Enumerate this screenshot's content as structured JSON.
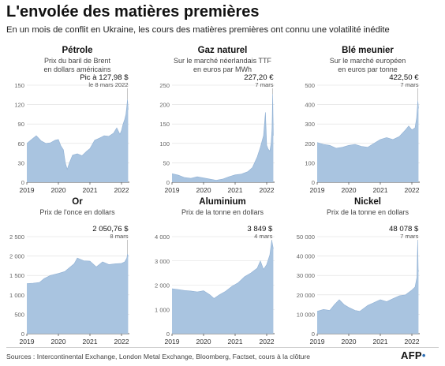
{
  "header": {
    "title": "L'envolée des matières premières",
    "subtitle": "En un mois de conflit en Ukraine, les cours des matières premières ont connu une volatilité inédite"
  },
  "footer": {
    "source": "Sources : Intercontinental Exchange, London Metal Exchange, Bloomberg, Factset, cours à la clôture",
    "logo_text": "AFP",
    "logo_dot": "•"
  },
  "style": {
    "area_color": "#a9c4e0",
    "text_color": "#222222",
    "grid_color": "#dddddd",
    "axis_color": "#555555"
  },
  "chart_data": [
    {
      "type": "area",
      "title": "Pétrole",
      "subtitle": [
        "Prix du baril de Brent",
        "en dollars américains"
      ],
      "annotation": {
        "value": "Pic à 127,98 $",
        "date": "le 8 mars 2022"
      },
      "yticks": [
        0,
        30,
        60,
        90,
        120,
        150
      ],
      "ylim": [
        0,
        150
      ],
      "xticks": [
        "2019",
        "2020",
        "2021",
        "2022"
      ],
      "xlim": [
        2019.0,
        2022.25
      ],
      "x": [
        2019.0,
        2019.15,
        2019.3,
        2019.45,
        2019.6,
        2019.75,
        2019.9,
        2020.0,
        2020.08,
        2020.16,
        2020.22,
        2020.28,
        2020.35,
        2020.45,
        2020.6,
        2020.75,
        2020.9,
        2021.0,
        2021.15,
        2021.3,
        2021.45,
        2021.6,
        2021.75,
        2021.85,
        2021.95,
        2022.0,
        2022.05,
        2022.1,
        2022.14,
        2022.17,
        2022.19,
        2022.21
      ],
      "values": [
        60,
        66,
        72,
        64,
        60,
        61,
        65,
        66,
        56,
        50,
        30,
        20,
        30,
        42,
        44,
        41,
        48,
        52,
        65,
        68,
        72,
        71,
        76,
        84,
        74,
        80,
        90,
        97,
        105,
        118,
        128,
        112
      ]
    },
    {
      "type": "area",
      "title": "Gaz naturel",
      "subtitle": [
        "Sur le marché néerlandais TTF",
        "en euros par MWh"
      ],
      "annotation": {
        "value": "227,20 €",
        "date": "7 mars"
      },
      "yticks": [
        0,
        50,
        100,
        150,
        200,
        250
      ],
      "ylim": [
        0,
        250
      ],
      "xticks": [
        "2019",
        "2020",
        "2021",
        "2022"
      ],
      "xlim": [
        2019.0,
        2022.25
      ],
      "x": [
        2019.0,
        2019.2,
        2019.4,
        2019.6,
        2019.8,
        2020.0,
        2020.2,
        2020.4,
        2020.6,
        2020.8,
        2021.0,
        2021.2,
        2021.4,
        2021.55,
        2021.7,
        2021.8,
        2021.9,
        2021.96,
        2022.0,
        2022.05,
        2022.1,
        2022.14,
        2022.17,
        2022.19,
        2022.21
      ],
      "values": [
        22,
        18,
        12,
        10,
        14,
        11,
        8,
        5,
        8,
        14,
        19,
        21,
        27,
        38,
        65,
        90,
        120,
        180,
        95,
        85,
        80,
        100,
        140,
        227,
        120
      ]
    },
    {
      "type": "area",
      "title": "Blé meunier",
      "subtitle": [
        "Sur le marché européen",
        "en euros par tonne"
      ],
      "annotation": {
        "value": "422,50 €",
        "date": "7 mars"
      },
      "yticks": [
        0,
        100,
        200,
        300,
        400,
        500
      ],
      "ylim": [
        0,
        500
      ],
      "xticks": [
        "2019",
        "2020",
        "2021",
        "2022"
      ],
      "xlim": [
        2019.0,
        2022.25
      ],
      "x": [
        2019.0,
        2019.2,
        2019.4,
        2019.6,
        2019.8,
        2020.0,
        2020.2,
        2020.4,
        2020.6,
        2020.8,
        2021.0,
        2021.2,
        2021.4,
        2021.6,
        2021.8,
        2021.9,
        2022.0,
        2022.1,
        2022.15,
        2022.19,
        2022.21
      ],
      "values": [
        205,
        195,
        190,
        175,
        180,
        190,
        195,
        185,
        180,
        200,
        220,
        230,
        220,
        235,
        270,
        290,
        270,
        280,
        330,
        420,
        380
      ]
    },
    {
      "type": "area",
      "title": "Or",
      "subtitle": [
        "Prix de l'once en dollars"
      ],
      "annotation": {
        "value": "2 050,76 $",
        "date": "8 mars"
      },
      "yticks": [
        0,
        500,
        1000,
        1500,
        2000,
        2500
      ],
      "ylim": [
        0,
        2500
      ],
      "xticks": [
        "2019",
        "2020",
        "2021",
        "2022"
      ],
      "xlim": [
        2019.0,
        2022.25
      ],
      "x": [
        2019.0,
        2019.2,
        2019.4,
        2019.55,
        2019.75,
        2020.0,
        2020.2,
        2020.35,
        2020.5,
        2020.6,
        2020.8,
        2021.0,
        2021.2,
        2021.4,
        2021.6,
        2021.8,
        2022.0,
        2022.1,
        2022.17,
        2022.19,
        2022.21
      ],
      "values": [
        1290,
        1300,
        1320,
        1420,
        1500,
        1550,
        1600,
        1700,
        1800,
        1950,
        1880,
        1870,
        1720,
        1850,
        1780,
        1800,
        1810,
        1850,
        1950,
        2050,
        1990
      ]
    },
    {
      "type": "area",
      "title": "Aluminium",
      "subtitle": [
        "Prix de la tonne en dollars"
      ],
      "annotation": {
        "value": "3 849 $",
        "date": "4 mars"
      },
      "yticks": [
        0,
        1000,
        2000,
        3000,
        4000
      ],
      "ylim": [
        0,
        4000
      ],
      "xticks": [
        "2019",
        "2020",
        "2021",
        "2022"
      ],
      "xlim": [
        2019.0,
        2022.25
      ],
      "x": [
        2019.0,
        2019.2,
        2019.4,
        2019.6,
        2019.8,
        2020.0,
        2020.2,
        2020.33,
        2020.5,
        2020.7,
        2020.9,
        2021.1,
        2021.3,
        2021.5,
        2021.7,
        2021.8,
        2021.9,
        2022.0,
        2022.1,
        2022.16,
        2022.21
      ],
      "values": [
        1850,
        1820,
        1780,
        1760,
        1720,
        1770,
        1600,
        1450,
        1600,
        1750,
        1950,
        2100,
        2350,
        2500,
        2700,
        3000,
        2650,
        2850,
        3250,
        3849,
        3500
      ]
    },
    {
      "type": "area",
      "title": "Nickel",
      "subtitle": [
        "Prix de la tonne en dollars"
      ],
      "annotation": {
        "value": "48 078 $",
        "date": "7 mars"
      },
      "yticks": [
        0,
        10000,
        20000,
        30000,
        40000,
        50000
      ],
      "ylim": [
        0,
        50000
      ],
      "xticks": [
        "2019",
        "2020",
        "2021",
        "2022"
      ],
      "xlim": [
        2019.0,
        2022.25
      ],
      "x": [
        2019.0,
        2019.2,
        2019.4,
        2019.55,
        2019.7,
        2019.85,
        2020.0,
        2020.2,
        2020.35,
        2020.6,
        2020.8,
        2021.0,
        2021.2,
        2021.4,
        2021.6,
        2021.8,
        2022.0,
        2022.1,
        2022.16,
        2022.185,
        2022.2,
        2022.21
      ],
      "values": [
        11500,
        12500,
        12000,
        15000,
        17500,
        15000,
        13500,
        12000,
        11500,
        14500,
        16000,
        17500,
        16500,
        18000,
        19500,
        20000,
        22500,
        24000,
        29000,
        48078,
        33000,
        32000
      ]
    }
  ]
}
